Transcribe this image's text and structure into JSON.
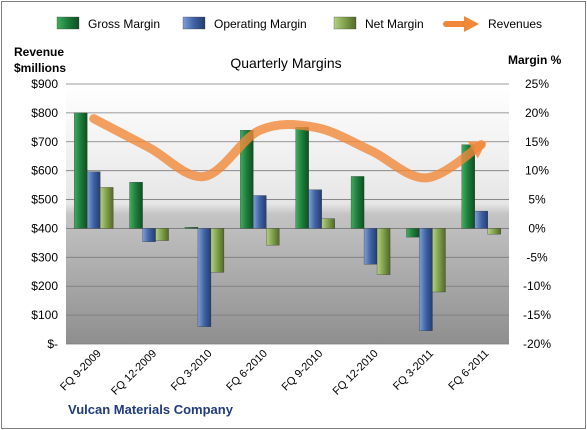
{
  "chart_data": {
    "type": "bar+line",
    "title": "Quarterly Margins",
    "company": "Vulcan Materials Company",
    "left_axis_label_line1": "Revenue",
    "left_axis_label_line2": "$millions",
    "right_axis_label": "Margin %",
    "categories": [
      "FQ 9-2009",
      "FQ 12-2009",
      "FQ 3-2010",
      "FQ 6-2010",
      "FQ 9-2010",
      "FQ 12-2010",
      "FQ 3-2011",
      "FQ 6-2011"
    ],
    "left_axis": {
      "min": 0,
      "max": 900,
      "step": 100,
      "tick_labels": [
        "$-",
        "$100",
        "$200",
        "$300",
        "$400",
        "$500",
        "$600",
        "$700",
        "$800",
        "$900"
      ]
    },
    "right_axis": {
      "min": -20,
      "max": 25,
      "step": 5,
      "tick_labels": [
        "-20%",
        "-15%",
        "-10%",
        "-5%",
        "0%",
        "5%",
        "10%",
        "15%",
        "20%",
        "25%"
      ]
    },
    "series": [
      {
        "name": "Gross Margin",
        "axis": "right",
        "kind": "bar",
        "color": "#1e7b3b",
        "values": [
          20,
          8,
          0.2,
          17,
          17.5,
          9,
          -1.5,
          14.5
        ]
      },
      {
        "name": "Operating Margin",
        "axis": "right",
        "kind": "bar",
        "color": "#3f62a3",
        "values": [
          9.8,
          -2.3,
          -17,
          5.7,
          6.7,
          -6.2,
          -17.7,
          3
        ]
      },
      {
        "name": "Net Margin",
        "axis": "right",
        "kind": "bar",
        "color": "#7fa04a",
        "values": [
          7.1,
          -2.1,
          -7.6,
          -2.9,
          1.7,
          -8,
          -11,
          -1
        ]
      },
      {
        "name": "Revenues",
        "axis": "left",
        "kind": "line",
        "color": "#f0883a",
        "values": [
          780,
          680,
          580,
          740,
          750,
          670,
          575,
          690
        ]
      }
    ],
    "grid": true,
    "legend_position": "top"
  }
}
